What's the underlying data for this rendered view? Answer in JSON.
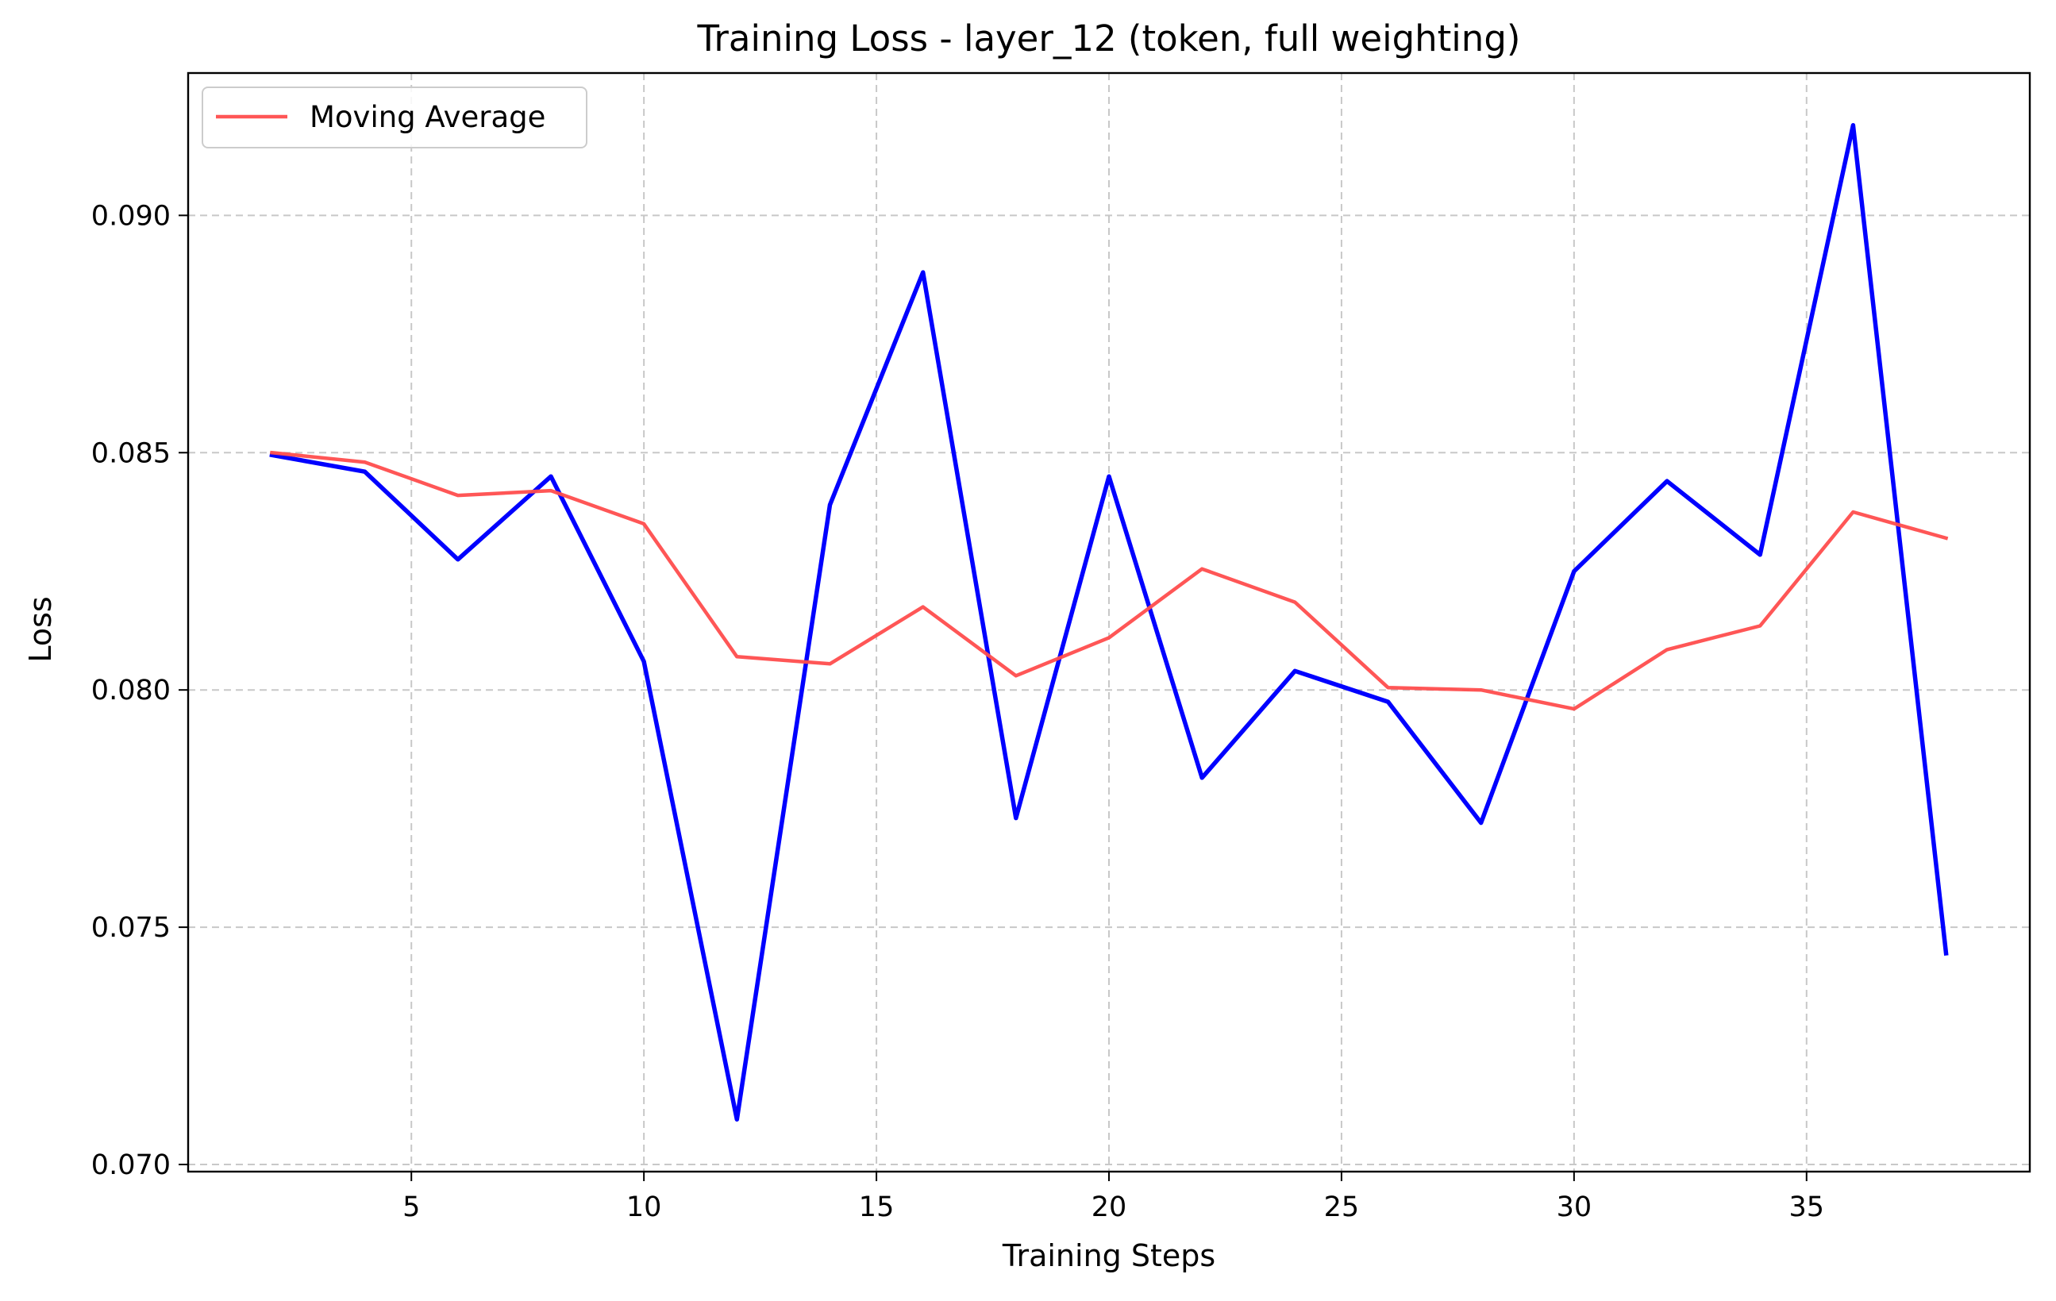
{
  "chart_data": {
    "type": "line",
    "title": "Training Loss - layer_12 (token, full weighting)",
    "xlabel": "Training Steps",
    "ylabel": "Loss",
    "xlim": [
      0.2,
      39.8
    ],
    "ylim": [
      0.06985,
      0.093
    ],
    "xticks": [
      5,
      10,
      15,
      20,
      25,
      30,
      35
    ],
    "xtick_labels": [
      "5",
      "10",
      "15",
      "20",
      "25",
      "30",
      "35"
    ],
    "yticks": [
      0.07,
      0.075,
      0.08,
      0.085,
      0.09
    ],
    "ytick_labels": [
      "0.070",
      "0.075",
      "0.080",
      "0.085",
      "0.090"
    ],
    "grid": true,
    "legend_position": "top-left",
    "x": [
      2,
      4,
      6,
      8,
      10,
      12,
      14,
      16,
      18,
      20,
      22,
      24,
      26,
      28,
      30,
      32,
      34,
      36,
      38
    ],
    "series": [
      {
        "color": "#0000ff",
        "values": [
          0.08495,
          0.0846,
          0.08275,
          0.0845,
          0.0806,
          0.07095,
          0.0839,
          0.0888,
          0.0773,
          0.0845,
          0.07815,
          0.0804,
          0.07975,
          0.0772,
          0.0825,
          0.0844,
          0.08285,
          0.0919,
          0.07445
        ]
      },
      {
        "name": "Moving Average",
        "color": "#ff4d4d",
        "values": [
          0.085,
          0.0848,
          0.0841,
          0.0842,
          0.0835,
          0.0807,
          0.08055,
          0.08175,
          0.0803,
          0.0811,
          0.08255,
          0.08185,
          0.08005,
          0.08,
          0.0796,
          0.08085,
          0.08135,
          0.08375,
          0.0832
        ]
      }
    ]
  }
}
